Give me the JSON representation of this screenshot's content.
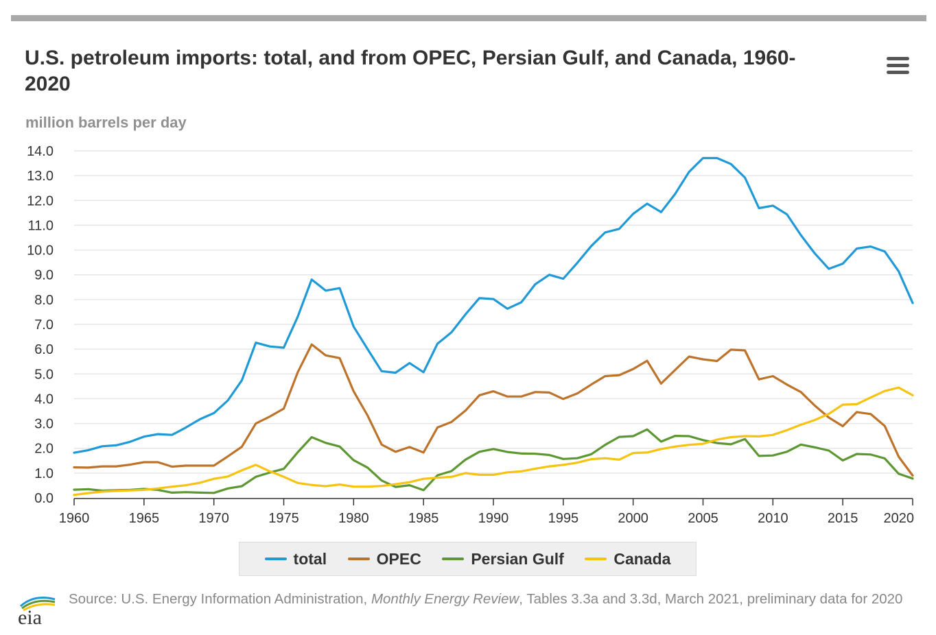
{
  "chart_data": {
    "type": "line",
    "title": "U.S. petroleum imports: total, and from OPEC, Persian Gulf, and Canada, 1960-2020",
    "ylabel": "million barrels per day",
    "xlabel": "",
    "xlim": [
      1960,
      2020
    ],
    "ylim": [
      0,
      14
    ],
    "grid": true,
    "legend_position": "bottom",
    "x": [
      1960,
      1961,
      1962,
      1963,
      1964,
      1965,
      1966,
      1967,
      1968,
      1969,
      1970,
      1971,
      1972,
      1973,
      1974,
      1975,
      1976,
      1977,
      1978,
      1979,
      1980,
      1981,
      1982,
      1983,
      1984,
      1985,
      1986,
      1987,
      1988,
      1989,
      1990,
      1991,
      1992,
      1993,
      1994,
      1995,
      1996,
      1997,
      1998,
      1999,
      2000,
      2001,
      2002,
      2003,
      2004,
      2005,
      2006,
      2007,
      2008,
      2009,
      2010,
      2011,
      2012,
      2013,
      2014,
      2015,
      2016,
      2017,
      2018,
      2019,
      2020
    ],
    "x_ticks": [
      "1960",
      "1965",
      "1970",
      "1975",
      "1980",
      "1985",
      "1990",
      "1995",
      "2000",
      "2005",
      "2010",
      "2015",
      "2020"
    ],
    "x_tick_values": [
      1960,
      1965,
      1970,
      1975,
      1980,
      1985,
      1990,
      1995,
      2000,
      2005,
      2010,
      2015,
      2020
    ],
    "y_ticks": [
      "0.0",
      "1.0",
      "2.0",
      "3.0",
      "4.0",
      "5.0",
      "6.0",
      "7.0",
      "8.0",
      "9.0",
      "10.0",
      "11.0",
      "12.0",
      "13.0",
      "14.0"
    ],
    "y_tick_values": [
      0,
      1,
      2,
      3,
      4,
      5,
      6,
      7,
      8,
      9,
      10,
      11,
      12,
      13,
      14
    ],
    "series": [
      {
        "name": "total",
        "color": "#1f9ad6",
        "values": [
          1.82,
          1.92,
          2.08,
          2.12,
          2.26,
          2.47,
          2.57,
          2.54,
          2.84,
          3.17,
          3.42,
          3.93,
          4.74,
          6.26,
          6.11,
          6.06,
          7.31,
          8.81,
          8.36,
          8.46,
          6.91,
          6.0,
          5.11,
          5.05,
          5.44,
          5.07,
          6.22,
          6.68,
          7.4,
          8.06,
          8.02,
          7.63,
          7.89,
          8.62,
          9.0,
          8.84,
          9.48,
          10.16,
          10.71,
          10.85,
          11.46,
          11.87,
          11.53,
          12.26,
          13.15,
          13.71,
          13.71,
          13.47,
          12.92,
          11.69,
          11.79,
          11.44,
          10.6,
          9.86,
          9.24,
          9.45,
          10.06,
          10.14,
          9.94,
          9.14,
          7.86
        ]
      },
      {
        "name": "OPEC",
        "color": "#bd732a",
        "values": [
          1.23,
          1.22,
          1.27,
          1.27,
          1.34,
          1.44,
          1.44,
          1.26,
          1.3,
          1.3,
          1.3,
          1.67,
          2.06,
          3.0,
          3.28,
          3.6,
          5.07,
          6.19,
          5.75,
          5.64,
          4.3,
          3.32,
          2.15,
          1.86,
          2.05,
          1.83,
          2.84,
          3.06,
          3.52,
          4.14,
          4.3,
          4.09,
          4.09,
          4.27,
          4.25,
          3.99,
          4.21,
          4.57,
          4.91,
          4.95,
          5.2,
          5.53,
          4.61,
          5.16,
          5.7,
          5.59,
          5.52,
          5.98,
          5.95,
          4.78,
          4.91,
          4.57,
          4.27,
          3.72,
          3.24,
          2.89,
          3.46,
          3.38,
          2.9,
          1.66,
          0.9
        ]
      },
      {
        "name": "Persian Gulf",
        "color": "#5d9732",
        "values": [
          0.33,
          0.35,
          0.29,
          0.31,
          0.32,
          0.36,
          0.32,
          0.21,
          0.23,
          0.21,
          0.2,
          0.38,
          0.47,
          0.85,
          1.02,
          1.17,
          1.84,
          2.45,
          2.22,
          2.07,
          1.52,
          1.22,
          0.7,
          0.44,
          0.51,
          0.31,
          0.91,
          1.08,
          1.54,
          1.86,
          1.97,
          1.85,
          1.79,
          1.78,
          1.73,
          1.57,
          1.6,
          1.76,
          2.14,
          2.46,
          2.49,
          2.76,
          2.27,
          2.5,
          2.49,
          2.33,
          2.21,
          2.16,
          2.37,
          1.69,
          1.71,
          1.86,
          2.15,
          2.04,
          1.91,
          1.51,
          1.77,
          1.75,
          1.59,
          0.97,
          0.78
        ]
      },
      {
        "name": "Canada",
        "color": "#f6c312",
        "values": [
          0.12,
          0.19,
          0.25,
          0.28,
          0.3,
          0.32,
          0.38,
          0.45,
          0.51,
          0.61,
          0.77,
          0.86,
          1.11,
          1.33,
          1.07,
          0.85,
          0.6,
          0.52,
          0.47,
          0.54,
          0.45,
          0.45,
          0.48,
          0.55,
          0.63,
          0.77,
          0.81,
          0.85,
          1.0,
          0.93,
          0.93,
          1.03,
          1.07,
          1.18,
          1.27,
          1.33,
          1.42,
          1.56,
          1.6,
          1.54,
          1.81,
          1.83,
          1.97,
          2.07,
          2.14,
          2.18,
          2.35,
          2.45,
          2.49,
          2.48,
          2.54,
          2.73,
          2.95,
          3.14,
          3.39,
          3.76,
          3.78,
          4.05,
          4.31,
          4.45,
          4.14
        ]
      }
    ]
  },
  "menu_icon": "hamburger-menu-icon",
  "legend": {
    "items": [
      {
        "label": "total",
        "color": "#1f9ad6"
      },
      {
        "label": "OPEC",
        "color": "#bd732a"
      },
      {
        "label": "Persian Gulf",
        "color": "#5d9732"
      },
      {
        "label": "Canada",
        "color": "#f6c312"
      }
    ]
  },
  "source": {
    "prefix": "Source: U.S. Energy Information Administration, ",
    "publication": "Monthly Energy Review",
    "suffix": ", Tables 3.3a and 3.3d, March 2021, preliminary data for 2020"
  },
  "logo": {
    "text": "eia",
    "icon": "eia-logo-icon"
  }
}
